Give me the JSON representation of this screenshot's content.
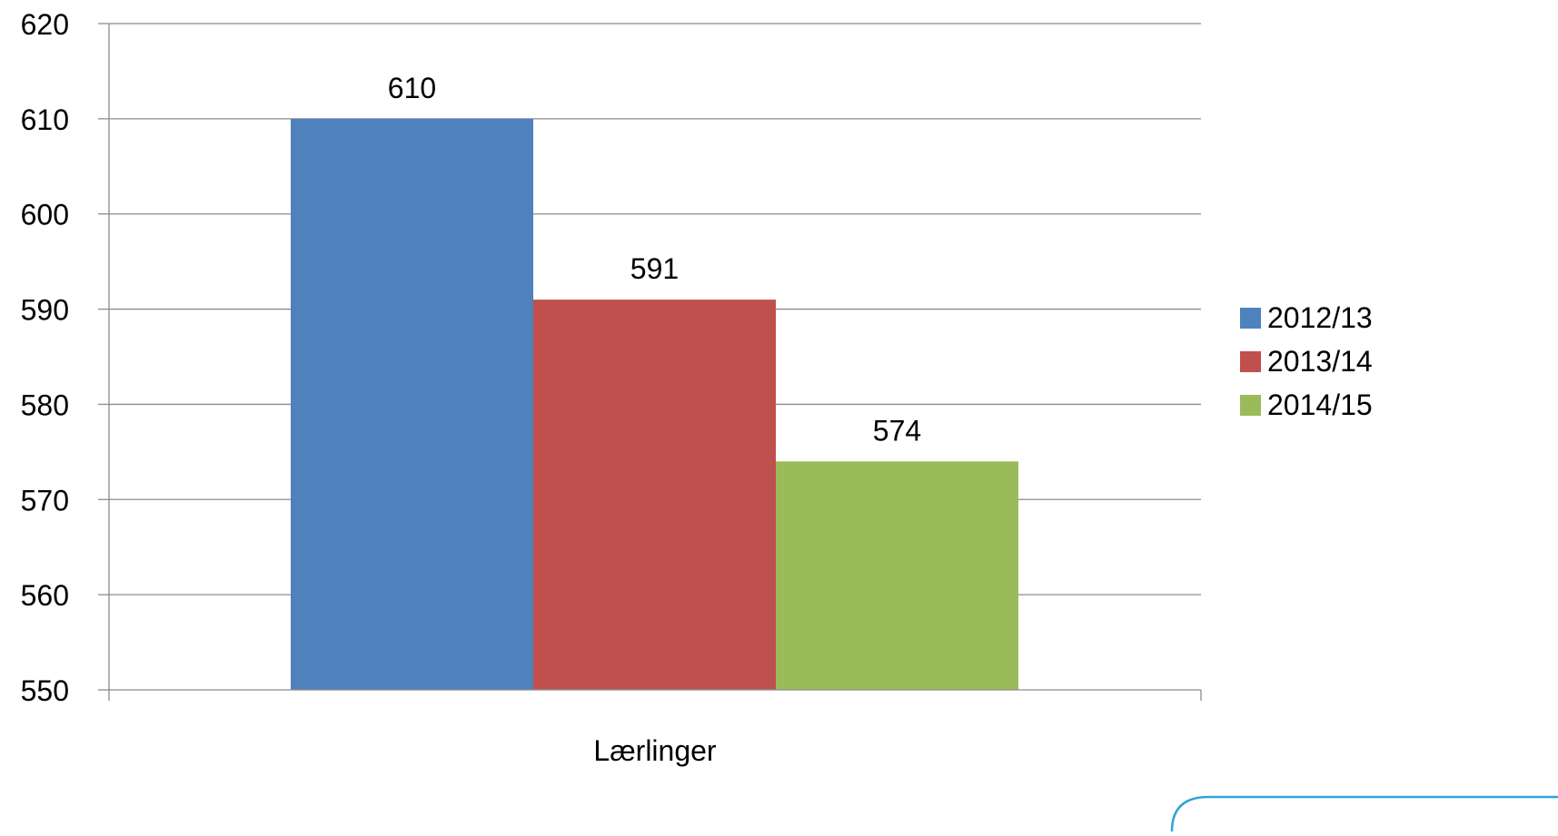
{
  "chart_data": {
    "type": "bar",
    "categories": [
      "Lærlinger"
    ],
    "series": [
      {
        "name": "2012/13",
        "values": [
          610
        ],
        "color": "#4F81BD"
      },
      {
        "name": "2013/14",
        "values": [
          591
        ],
        "color": "#C0504D"
      },
      {
        "name": "2014/15",
        "values": [
          574
        ],
        "color": "#9BBB59"
      }
    ],
    "data_labels": [
      "610",
      "591",
      "574"
    ],
    "ylim": [
      550,
      620
    ],
    "yticks": [
      "550",
      "560",
      "570",
      "580",
      "590",
      "600",
      "610",
      "620"
    ],
    "xlabel": "",
    "ylabel": "",
    "title": "",
    "grid": true,
    "legend_position": "right"
  },
  "gridline_color": "#8C8C8C",
  "axis_color": "#8C8C8C"
}
